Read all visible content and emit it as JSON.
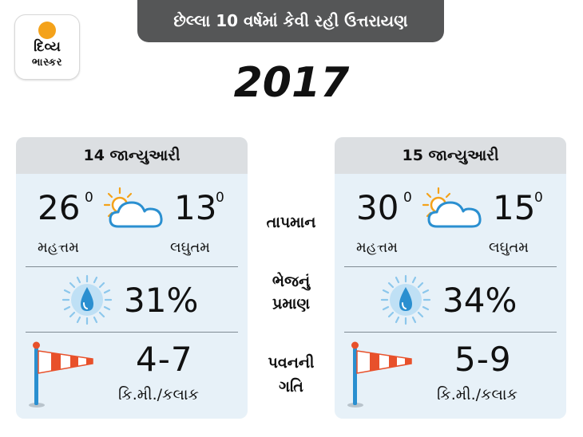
{
  "logo": {
    "line1": "દિવ્ય",
    "line2": "ભાસ્કર"
  },
  "banner": "છેલ્લા 10 વર્ષમાં કેવી રહી ઉત્તરાયણ",
  "year": "2017",
  "labels": {
    "temperature": "તાપમાન",
    "humidity_line1": "ભેજનું",
    "humidity_line2": "પ્રમાણ",
    "wind_line1": "પવનની",
    "wind_line2": "ગતિ"
  },
  "days": [
    {
      "date": "14 જાન્યુઆરી",
      "max_temp": "26",
      "max_label": "મહત્તમ",
      "min_temp": "13",
      "min_label": "લઘુતમ",
      "degree": "0",
      "humidity": "31%",
      "wind_speed": "4-7",
      "wind_unit": "કિ.મી./કલાક"
    },
    {
      "date": "15 જાન્યુઆરી",
      "max_temp": "30",
      "max_label": "મહત્તમ",
      "min_temp": "15",
      "min_label": "લઘુતમ",
      "degree": "0",
      "humidity": "34%",
      "wind_speed": "5-9",
      "wind_unit": "કિ.મી./કલાક"
    }
  ],
  "colors": {
    "banner": "#555657",
    "panel": "#e7f1f8",
    "panel_header": "#dcdfe2",
    "sun": "#f4a21a",
    "drop": "#2a8fd0",
    "windsock": "#e8512b"
  },
  "icons": {
    "weather": "partly-cloudy-icon",
    "humidity": "water-drop-icon",
    "wind": "windsock-icon"
  }
}
